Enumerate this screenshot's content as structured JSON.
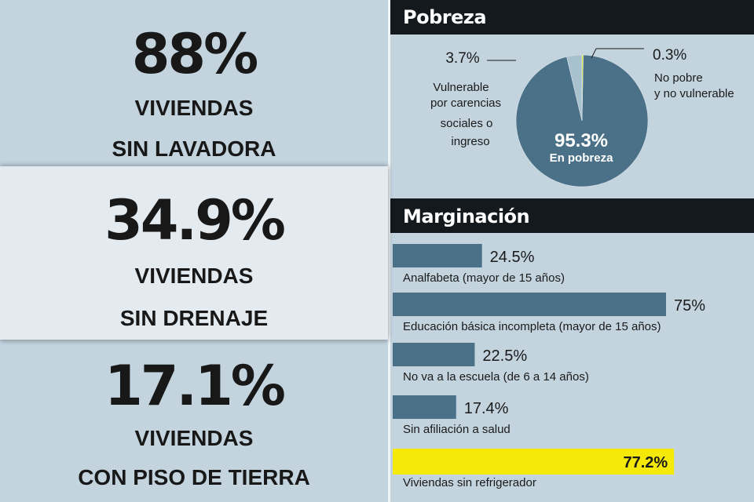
{
  "stats": [
    {
      "value": "88%",
      "line1": "VIVIENDAS",
      "line2": "SIN LAVADORA"
    },
    {
      "value": "34.9%",
      "line1": "VIVIENDAS",
      "line2": "SIN DRENAJE"
    },
    {
      "value": "17.1%",
      "line1": "VIVIENDAS",
      "line2": "CON PISO DE TIERRA"
    }
  ],
  "chart_data": [
    {
      "type": "pie",
      "title": "Pobreza",
      "slices": [
        {
          "name": "En pobreza",
          "value": 95.3,
          "label": "95.3%",
          "color": "#4b7189"
        },
        {
          "name": "Vulnerable por carencias sociales o ingreso",
          "value": 3.7,
          "label": "3.7%",
          "color": "#a7c1ce"
        },
        {
          "name": "No pobre y no vulnerable",
          "value": 0.3,
          "label": "0.3%",
          "color": "#e2e600"
        }
      ],
      "annotations": {
        "vulnerable_label_lines": [
          "Vulnerable",
          "por carencias",
          "sociales o",
          "ingreso"
        ],
        "no_pobre_label_lines": [
          "No pobre",
          "y no vulnerable"
        ],
        "en_pobreza_label": "En pobreza"
      }
    },
    {
      "type": "bar",
      "title": "Marginación",
      "orientation": "horizontal",
      "categories": [
        "Analfabeta (mayor de 15 años)",
        "Educación básica incompleta  (mayor de 15 años)",
        "No va a la escuela (de 6 a 14 años)",
        "Sin afiliación a  salud",
        "Viviendas sin refrigerador"
      ],
      "values": [
        24.5,
        75,
        22.5,
        17.4,
        77.2
      ],
      "value_labels": [
        "24.5%",
        "75%",
        "22.5%",
        "17.4%",
        "77.2%"
      ],
      "colors": [
        "#4b7189",
        "#4b7189",
        "#4b7189",
        "#4b7189",
        "#f5e90a"
      ],
      "highlight_index": 4,
      "xlim": [
        0,
        100
      ]
    }
  ]
}
